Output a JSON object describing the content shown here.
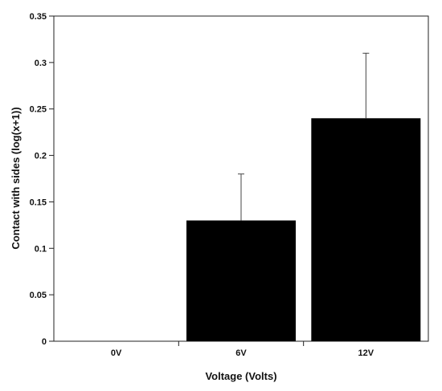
{
  "chart_data": {
    "type": "bar",
    "title": "",
    "xlabel": "Voltage (Volts)",
    "ylabel": "Contact with sides (log(x+1))",
    "categories": [
      "0V",
      "6V",
      "12V"
    ],
    "values": [
      0,
      0.13,
      0.24
    ],
    "error_plus": [
      0,
      0.05,
      0.07
    ],
    "ylim": [
      0,
      0.35
    ],
    "yticks": [
      0,
      0.05,
      0.1,
      0.15,
      0.2,
      0.25,
      0.3,
      0.35
    ],
    "ytick_labels": [
      "0",
      "0.05",
      "0.1",
      "0.15",
      "0.2",
      "0.25",
      "0.3",
      "0.35"
    ],
    "grid": false,
    "bar_color": "#000000"
  }
}
